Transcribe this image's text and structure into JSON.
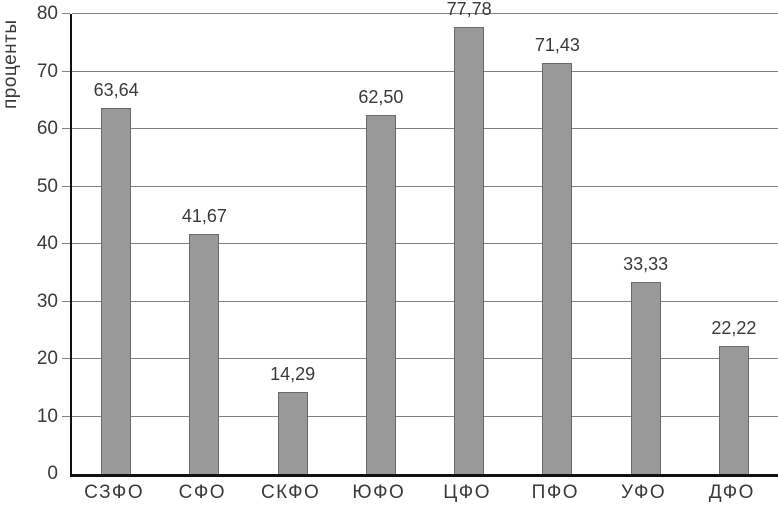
{
  "chart_data": {
    "type": "bar",
    "title": "",
    "xlabel": "",
    "ylabel": "проценты",
    "categories": [
      "СЗФО",
      "СФО",
      "СКФО",
      "ЮФО",
      "ЦФО",
      "ПФО",
      "УФО",
      "ДФО"
    ],
    "values": [
      63.64,
      41.67,
      14.29,
      62.5,
      77.78,
      71.43,
      33.33,
      22.22
    ],
    "value_labels": [
      "63,64",
      "41,67",
      "14,29",
      "62,50",
      "77,78",
      "71,43",
      "33,33",
      "22,22"
    ],
    "ylim": [
      0,
      80
    ],
    "yticks": [
      0,
      10,
      20,
      30,
      40,
      50,
      60,
      70,
      80
    ],
    "grid": true,
    "legend": false,
    "colors": {
      "bar_fill": "#999999",
      "bar_border": "#6a6a6a",
      "gridline": "#808080",
      "axis": "#111111",
      "text": "#3a3a3a",
      "background": "#ffffff"
    }
  }
}
